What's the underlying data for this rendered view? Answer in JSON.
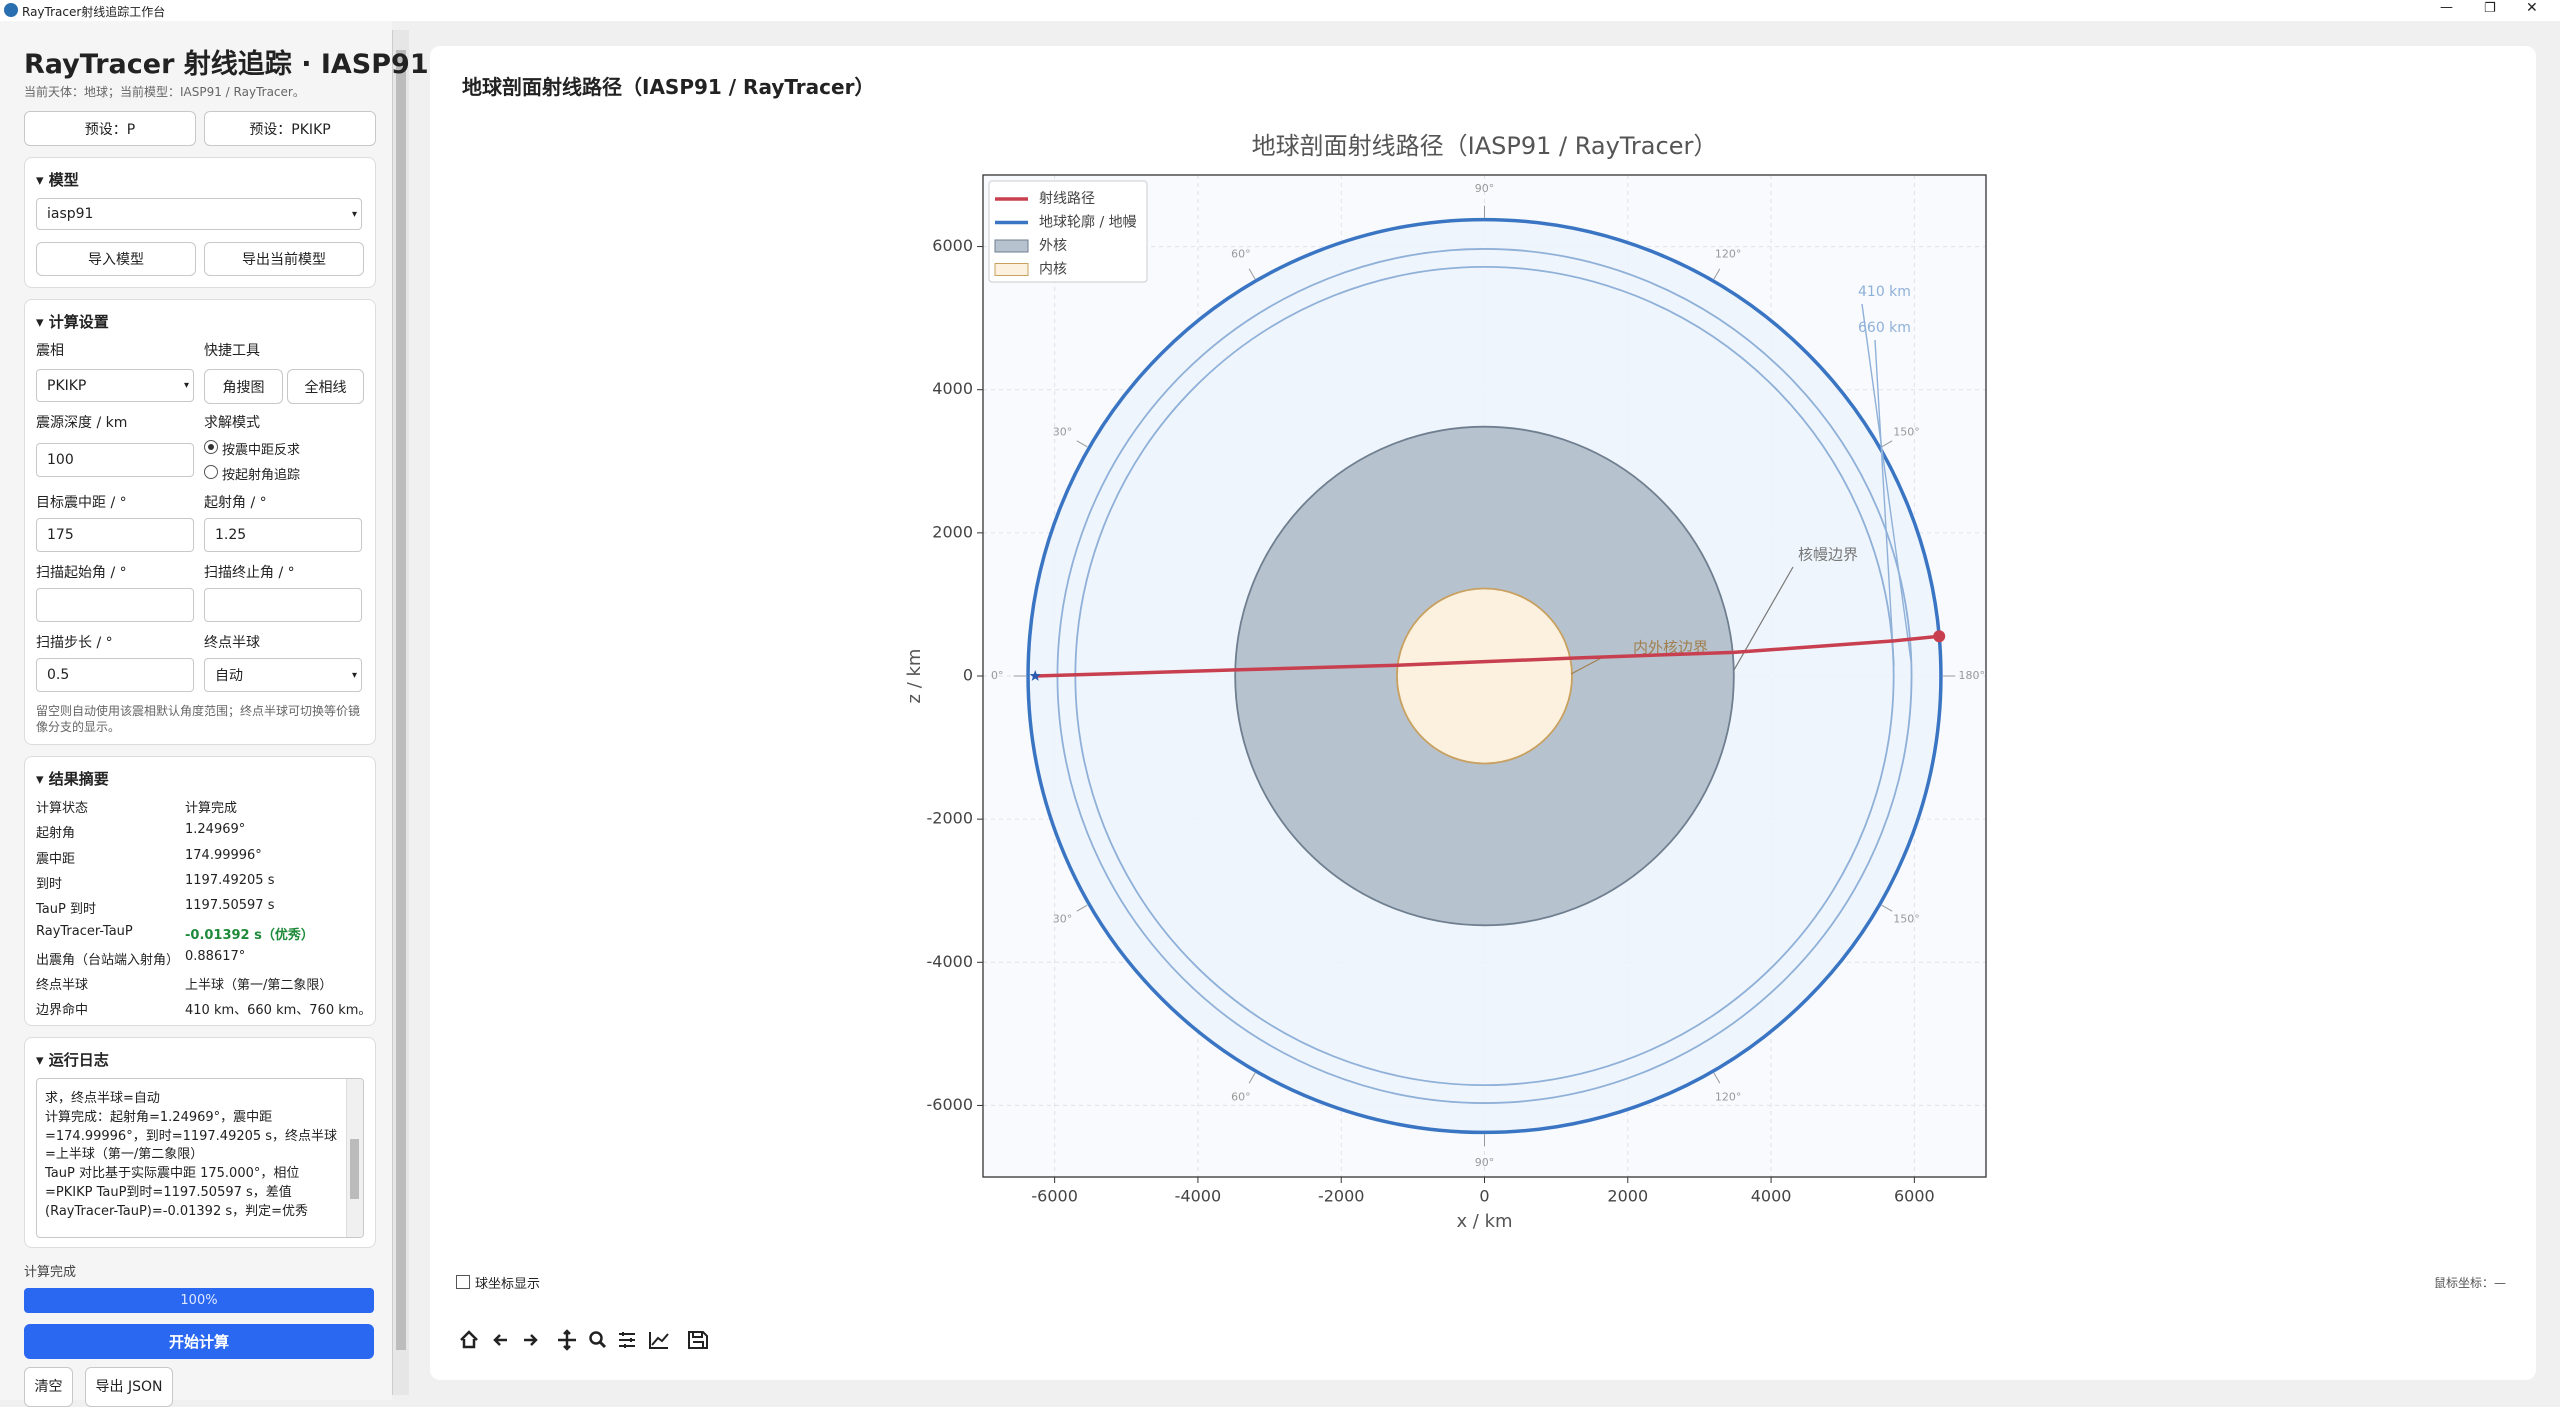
{
  "window": {
    "title": "RayTracer射线追踪工作台"
  },
  "sidebar": {
    "title": "RayTracer 射线追踪 · IASP91 /",
    "subtitle": "当前天体：地球；当前模型：IASP91 / RayTracer。",
    "presets": [
      "预设：P",
      "预设：PKIKP"
    ],
    "model": {
      "header": "模型",
      "selected": "iasp91",
      "buttons": [
        "导入模型",
        "导出当前模型"
      ]
    },
    "settings": {
      "header": "计算设置",
      "phase_label": "震相",
      "phase": "PKIKP",
      "tools_label": "快捷工具",
      "tools": [
        "角搜图",
        "全相线"
      ],
      "depth_label": "震源深度 / km",
      "depth": 100,
      "mode_label": "求解模式",
      "modes": [
        "按震中距反求",
        "按起射角追踪"
      ],
      "distance_label": "目标震中距 / °",
      "distance": 175,
      "takeoff_label": "起射角 / °",
      "takeoff": 1.25,
      "scan_start_label": "扫描起始角 / °",
      "scan_end_label": "扫描终止角 / °",
      "step_label": "扫描步长 / °",
      "step": 0.5,
      "hemisphere_label": "终点半球",
      "hemisphere": "自动",
      "note": [
        "留空则自动使用该震相默认角度范围；终点半球可切换等价镜",
        "像分支的显示。"
      ]
    },
    "summary": {
      "header": "结果摘要",
      "rows": [
        [
          "计算状态",
          "计算完成"
        ],
        [
          "起射角",
          "1.24969°"
        ],
        [
          "震中距",
          "174.99996°"
        ],
        [
          "到时",
          "1197.49205 s"
        ],
        [
          "TauP 到时",
          "1197.50597 s"
        ],
        [
          "RayTracer-TauP",
          "-0.01392 s（优秀）"
        ],
        [
          "出震角（台站端入射角）",
          "0.88617°"
        ],
        [
          "终点半球",
          "上半球（第一/第二象限）"
        ],
        [
          "边界命中",
          "410 km、660 km、760 km。"
        ]
      ]
    },
    "log": {
      "header": "运行日志",
      "lines": [
        "求，终点半球=自动",
        "计算完成：起射角=1.24969°，震中距",
        "=174.99996°，到时=1197.49205 s，终点半球",
        "=上半球（第一/第二象限）",
        "TauP 对比基于实际震中距 175.000°，相位",
        "=PKIKP TauP到时=1197.50597 s，差值",
        "(RayTracer-TauP)=-0.01392 s，判定=优秀"
      ]
    },
    "status": "计算完成",
    "progress": "100%",
    "run": "开始计算",
    "actions": [
      "清空",
      "导出 JSON"
    ]
  },
  "main": {
    "header": "地球剖面射线路径（IASP91 / RayTracer）",
    "spherical": "球坐标显示",
    "cursor": "鼠标坐标：—"
  },
  "chart_data": {
    "type": "section",
    "title": "地球剖面射线路径（IASP91 / RayTracer）",
    "xlabel": "x / km",
    "ylabel": "z / km",
    "xlim": [
      -7000,
      7000
    ],
    "ylim": [
      -7000,
      7000
    ],
    "xticks": [
      -6000,
      -4000,
      -2000,
      0,
      2000,
      4000,
      6000
    ],
    "yticks": [
      -6000,
      -4000,
      -2000,
      0,
      2000,
      4000,
      6000
    ],
    "grid": true,
    "legend": "upper left",
    "series": [
      {
        "name": "射线路径",
        "color": "#c8404f",
        "x": [
          -6271,
          -3480,
          -1221,
          0,
          1221,
          3480,
          5711,
          6347
        ],
        "values": [
          0,
          85,
          150,
          200,
          250,
          330,
          490,
          555
        ]
      }
    ],
    "regions": [
      {
        "name": "地球轮廓 / 地幔",
        "color": "#3a75c4",
        "fill": "#edf3fb",
        "radius": 6371,
        "legend_mark": "line"
      },
      {
        "name": "外核",
        "color": "#6f7f90",
        "fill": "#b7c2cf",
        "radius": 3480,
        "legend_mark": "patch"
      },
      {
        "name": "内核",
        "color": "#c8a060",
        "fill": "#fbf1de",
        "radius": 1221.5,
        "legend_mark": "patch"
      }
    ],
    "discontinuities": [
      {
        "label": "410 km",
        "radius": 5961,
        "color": "#8fb0d8"
      },
      {
        "label": "660 km",
        "radius": 5711,
        "color": "#8fb0d8"
      }
    ],
    "boundary_labels": [
      {
        "label": "核幔边界",
        "color": "#777777"
      },
      {
        "label": "内外核边界",
        "color": "#a08050"
      }
    ],
    "source": {
      "x": -6271,
      "z": 0,
      "color": "#2a5db0"
    },
    "station": {
      "x": 6347,
      "z": 555,
      "color": "#c8404f"
    },
    "angle_labels": [
      {
        "angle": 0,
        "label": "0°",
        "side": "upper"
      },
      {
        "angle": 30,
        "label": "30°",
        "side": "upper"
      },
      {
        "angle": 60,
        "label": "60°",
        "side": "upper"
      },
      {
        "angle": 90,
        "label": "90°",
        "side": "upper"
      },
      {
        "angle": 120,
        "label": "120°",
        "side": "upper"
      },
      {
        "angle": 150,
        "label": "150°",
        "side": "upper"
      },
      {
        "angle": 180,
        "label": "180°",
        "side": "upper"
      },
      {
        "angle": 30,
        "label": "30°",
        "side": "lower"
      },
      {
        "angle": 60,
        "label": "60°",
        "side": "lower"
      },
      {
        "angle": 90,
        "label": "90°",
        "side": "lower"
      },
      {
        "angle": 120,
        "label": "120°",
        "side": "lower"
      },
      {
        "angle": 150,
        "label": "150°",
        "side": "lower"
      }
    ]
  }
}
